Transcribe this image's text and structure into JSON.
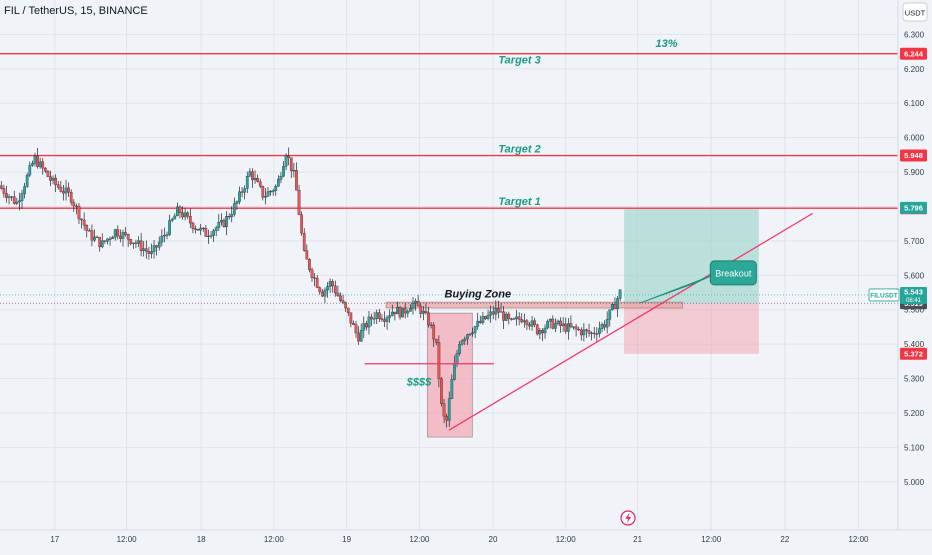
{
  "header": {
    "symbol_title": "FIL / TetherUS, 15, BINANCE",
    "currency_button": "USDT"
  },
  "colors": {
    "background": "#f0f3f8",
    "grid": "#e0e3eb",
    "up_candle": "#26a69a",
    "down_candle": "#ef5350",
    "target_line": "#f23645",
    "trendline": "#f7386a",
    "target_text": "#1c9c84",
    "profit_zone": "#8fd0c5",
    "loss_zone": "#f3a7b3",
    "price_badge": "#26a69a",
    "stop_badge": "#f23645",
    "last_badge": "#4a4e5a"
  },
  "chart_data": {
    "type": "candlestick",
    "title": "FIL / TetherUS, 15, BINANCE",
    "ylim": [
      4.86,
      6.4
    ],
    "xlim": [
      0,
      100
    ],
    "y_ticks": [
      "5.000",
      "5.100",
      "5.200",
      "5.300",
      "5.400",
      "5.500",
      "5.600",
      "5.700",
      "5.800",
      "5.900",
      "6.000",
      "6.100",
      "6.200",
      "6.300"
    ],
    "x_ticks": [
      {
        "label": "17",
        "x": 6.1
      },
      {
        "label": "12:00",
        "x": 14.1
      },
      {
        "label": "18",
        "x": 22.4
      },
      {
        "label": "12:00",
        "x": 30.5
      },
      {
        "label": "19",
        "x": 38.6
      },
      {
        "label": "12:00",
        "x": 46.7
      },
      {
        "label": "20",
        "x": 54.9
      },
      {
        "label": "12:00",
        "x": 63.0
      },
      {
        "label": "21",
        "x": 71.0
      },
      {
        "label": "12:00",
        "x": 79.2
      },
      {
        "label": "22",
        "x": 87.4
      },
      {
        "label": "12:00",
        "x": 95.6
      }
    ],
    "price_path": [
      [
        0,
        5.86
      ],
      [
        2,
        5.81
      ],
      [
        4,
        5.94
      ],
      [
        6,
        5.87
      ],
      [
        8,
        5.83
      ],
      [
        10,
        5.72
      ],
      [
        11.5,
        5.69
      ],
      [
        13,
        5.73
      ],
      [
        15,
        5.7
      ],
      [
        17,
        5.66
      ],
      [
        18.5,
        5.72
      ],
      [
        20,
        5.79
      ],
      [
        21.5,
        5.75
      ],
      [
        23,
        5.72
      ],
      [
        25,
        5.75
      ],
      [
        26.5,
        5.81
      ],
      [
        28,
        5.9
      ],
      [
        29.5,
        5.83
      ],
      [
        31,
        5.86
      ],
      [
        32,
        5.96
      ],
      [
        33,
        5.88
      ],
      [
        34,
        5.66
      ],
      [
        35,
        5.6
      ],
      [
        36,
        5.55
      ],
      [
        37,
        5.58
      ],
      [
        38,
        5.53
      ],
      [
        39,
        5.48
      ],
      [
        40,
        5.42
      ],
      [
        41,
        5.46
      ],
      [
        42,
        5.49
      ],
      [
        43,
        5.48
      ],
      [
        44,
        5.5
      ],
      [
        45,
        5.49
      ],
      [
        46,
        5.52
      ],
      [
        47,
        5.5
      ],
      [
        48,
        5.46
      ],
      [
        48.7,
        5.4
      ],
      [
        49.3,
        5.22
      ],
      [
        49.8,
        5.16
      ],
      [
        50.5,
        5.3
      ],
      [
        51.3,
        5.41
      ],
      [
        52.5,
        5.44
      ],
      [
        54,
        5.47
      ],
      [
        55.5,
        5.5
      ],
      [
        57,
        5.46
      ],
      [
        58.5,
        5.48
      ],
      [
        60,
        5.44
      ],
      [
        61.5,
        5.46
      ],
      [
        63,
        5.45
      ],
      [
        64.5,
        5.44
      ],
      [
        66,
        5.43
      ],
      [
        67.5,
        5.46
      ],
      [
        68.5,
        5.51
      ],
      [
        69.2,
        5.55
      ]
    ],
    "horizontal_levels": [
      {
        "label": "Target 3",
        "value": 6.244,
        "badge": "6.244"
      },
      {
        "label": "Target 2",
        "value": 5.948,
        "badge": "5.948"
      },
      {
        "label": "Target 1",
        "value": 5.795,
        "badge": "5.795"
      }
    ],
    "price_badges": [
      {
        "text": "5.796",
        "value": 5.796,
        "kind": "price"
      },
      {
        "text": "5.372",
        "value": 5.372,
        "kind": "stop"
      },
      {
        "text": "5.519",
        "value": 5.519,
        "kind": "last"
      }
    ],
    "current_price": {
      "symbol": "FILUSDT",
      "price": "5.543",
      "countdown": "08:41",
      "value": 5.543
    },
    "position": {
      "entry": 5.519,
      "target": 5.795,
      "stop": 5.372,
      "x_start": 69.5,
      "x_end": 84.5
    },
    "percent_label": "13%",
    "annotations": {
      "buying_zone": "Buying Zone",
      "liquidity": "$$$$",
      "breakout": "Breakout"
    },
    "trendline": {
      "from": [
        50.0,
        5.15
      ],
      "to": [
        90.5,
        5.78
      ]
    },
    "support_line": {
      "from": [
        40.6,
        5.343
      ],
      "to": [
        55.0,
        5.343
      ],
      "value": 5.343
    },
    "buying_zone_box": {
      "x_start": 43.0,
      "x_end": 76.0,
      "y_top": 5.522,
      "y_bottom": 5.505
    },
    "sweep_box": {
      "x_start": 47.6,
      "x_end": 52.6,
      "y_top": 5.49,
      "y_bottom": 5.13
    }
  }
}
